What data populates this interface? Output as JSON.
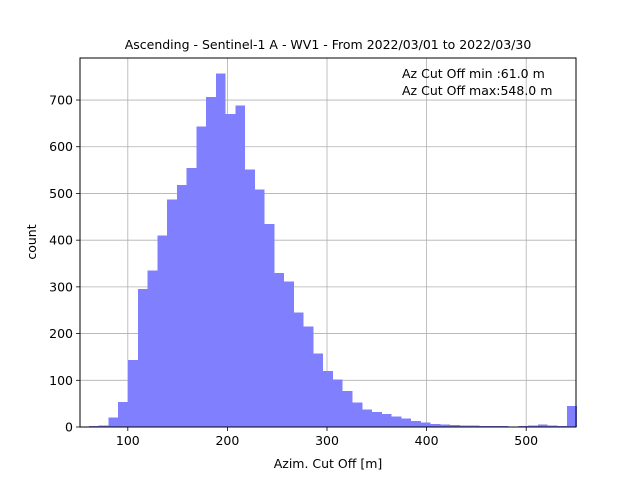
{
  "chart_data": {
    "type": "bar",
    "title": "Ascending - Sentinel-1 A - WV1 - From 2022/03/01 to 2022/03/30",
    "xlabel": "Azim. Cut Off [m]",
    "ylabel": "count",
    "xlim": [
      52,
      550
    ],
    "ylim": [
      0,
      790
    ],
    "xticks": [
      100,
      200,
      300,
      400,
      500
    ],
    "yticks": [
      0,
      100,
      200,
      300,
      400,
      500,
      600,
      700
    ],
    "grid": true,
    "bar_color": "#8080ff",
    "bin_width": 9.8,
    "bins_start": [
      61.0,
      70.8,
      80.6,
      90.4,
      100.2,
      110.0,
      119.8,
      129.6,
      139.4,
      149.2,
      159.0,
      168.8,
      178.6,
      188.4,
      198.2,
      208.0,
      217.8,
      227.6,
      237.4,
      247.2,
      257.0,
      266.8,
      276.6,
      286.4,
      296.2,
      306.0,
      315.8,
      325.6,
      335.4,
      345.2,
      355.0,
      364.8,
      374.6,
      384.4,
      394.2,
      404.0,
      413.8,
      423.6,
      433.4,
      443.2,
      453.0,
      462.8,
      472.6,
      482.4,
      492.2,
      502.0,
      511.8,
      521.6,
      531.4,
      541.2
    ],
    "counts": [
      2,
      3,
      20,
      53,
      143,
      295,
      335,
      410,
      487,
      518,
      555,
      643,
      707,
      757,
      670,
      688,
      551,
      508,
      435,
      330,
      311,
      245,
      215,
      157,
      120,
      102,
      77,
      52,
      38,
      32,
      28,
      22,
      18,
      13,
      10,
      6,
      5,
      4,
      3,
      3,
      2,
      2,
      2,
      1,
      2,
      3,
      5,
      3,
      2,
      45
    ]
  },
  "annotation": {
    "min_text": "Az Cut Off min :61.0 m",
    "max_text": "Az Cut Off max:548.0 m"
  }
}
